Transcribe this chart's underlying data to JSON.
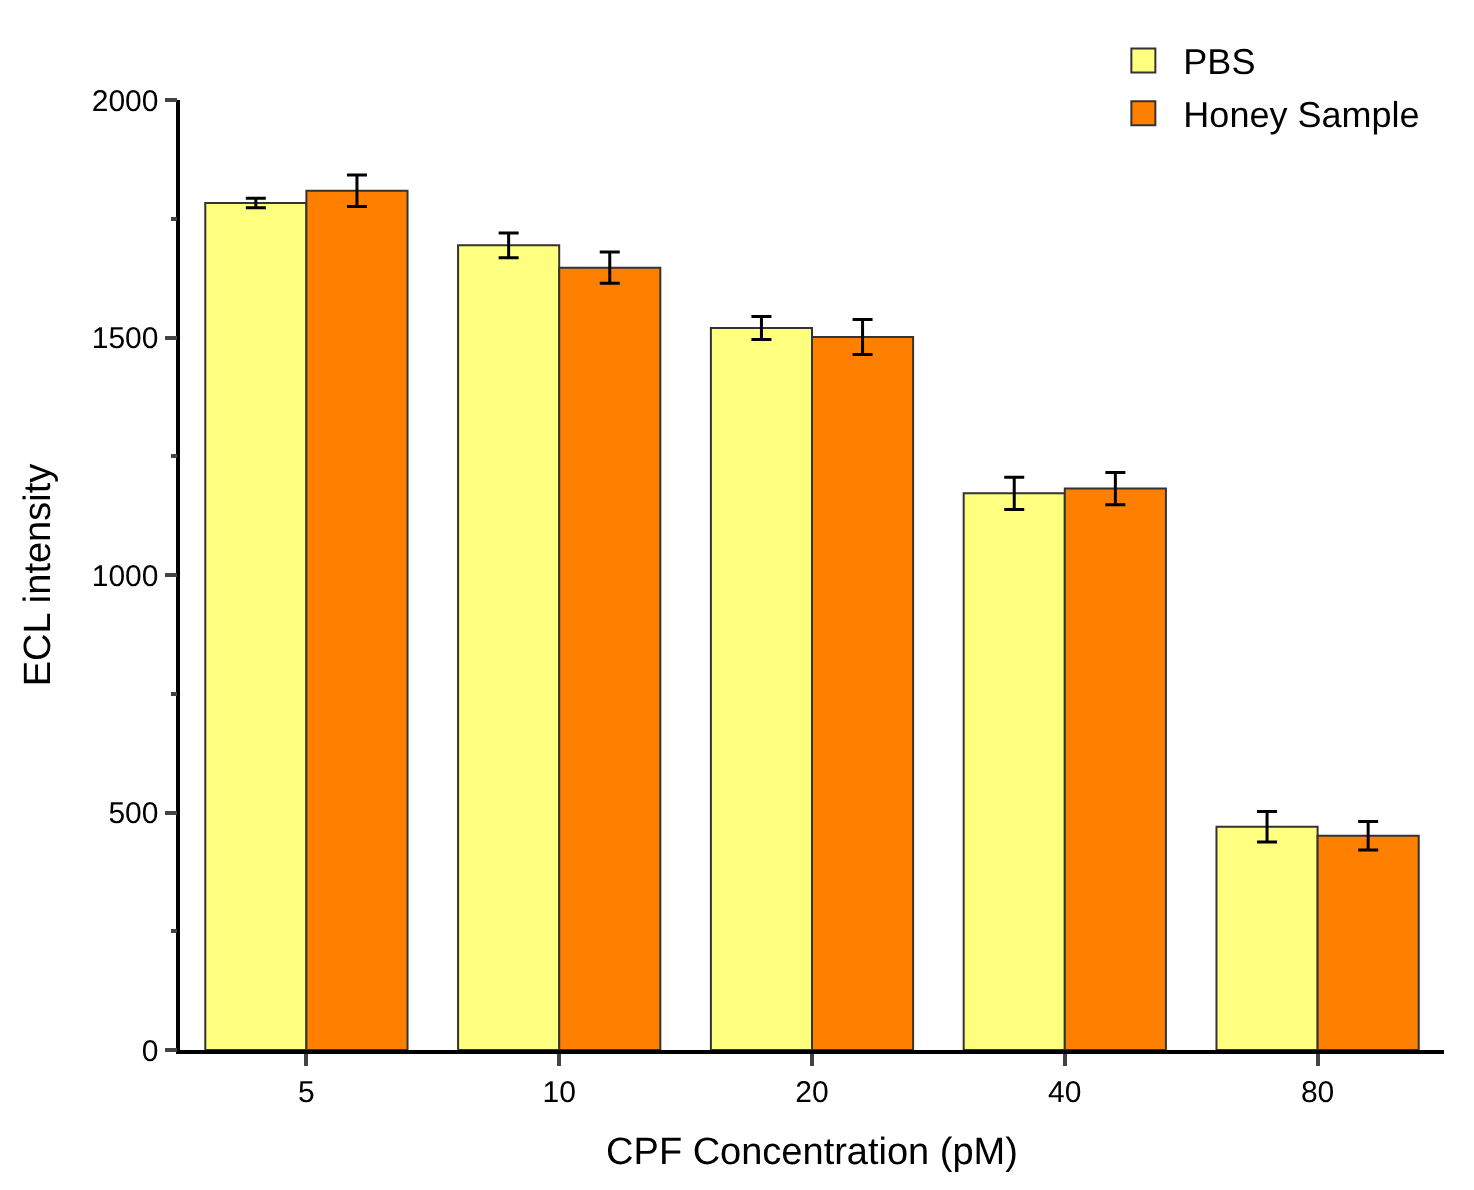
{
  "chart_data": {
    "type": "bar",
    "xlabel": "CPF Concentration (pM)",
    "ylabel": "ECL intensity",
    "categories": [
      "5",
      "10",
      "20",
      "40",
      "80"
    ],
    "series": [
      {
        "name": "PBS",
        "color": "#ffff80",
        "values": [
          1783,
          1694,
          1520,
          1172,
          470
        ],
        "errors": [
          10,
          26,
          24,
          34,
          32
        ]
      },
      {
        "name": "Honey Sample",
        "color": "#ff8000",
        "values": [
          1809,
          1647,
          1501,
          1182,
          451
        ],
        "errors": [
          33,
          33,
          37,
          34,
          30
        ]
      }
    ],
    "ylim": [
      0,
      2000
    ],
    "yticks": [
      0,
      500,
      1000,
      1500,
      2000
    ],
    "legend": "top right"
  }
}
